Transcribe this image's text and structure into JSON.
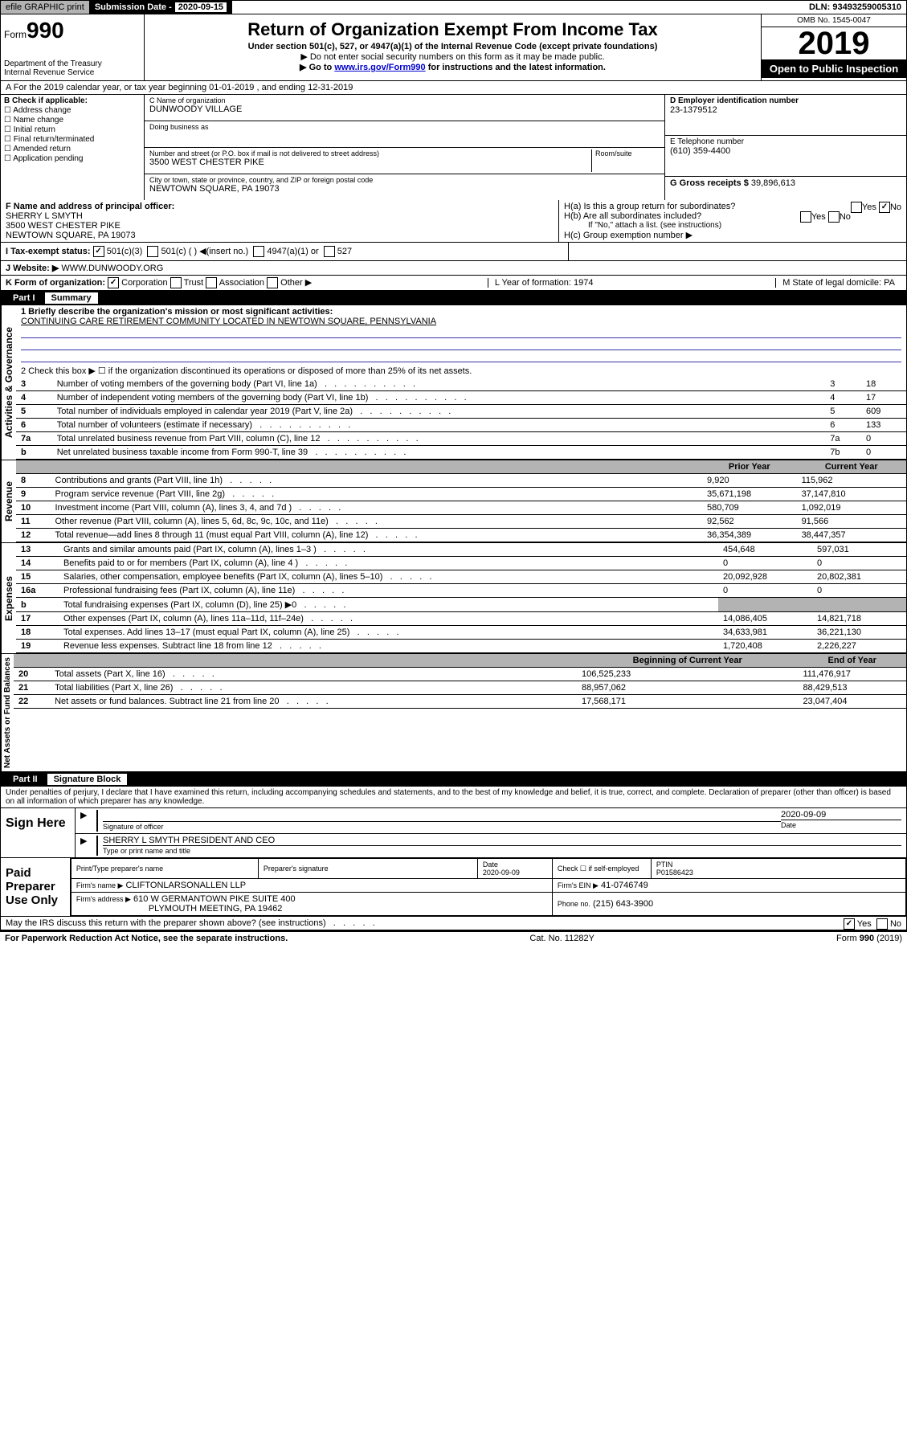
{
  "top": {
    "efile": "efile GRAPHIC print",
    "sub_lbl": "Submission Date - ",
    "sub_date": "2020-09-15",
    "dln": "DLN: 93493259005310"
  },
  "hdr": {
    "form": "Form",
    "num": "990",
    "dept": "Department of the Treasury",
    "irs": "Internal Revenue Service",
    "title": "Return of Organization Exempt From Income Tax",
    "sub": "Under section 501(c), 527, or 4947(a)(1) of the Internal Revenue Code (except private foundations)",
    "note1": "▶ Do not enter social security numbers on this form as it may be made public.",
    "note2_a": "▶ Go to ",
    "note2_link": "www.irs.gov/Form990",
    "note2_b": " for instructions and the latest information.",
    "omb": "OMB No. 1545-0047",
    "year": "2019",
    "open": "Open to Public Inspection"
  },
  "a": {
    "text": "A For the 2019 calendar year, or tax year beginning 01-01-2019   , and ending 12-31-2019"
  },
  "b": {
    "lbl": "B Check if applicable:",
    "opts": [
      "Address change",
      "Name change",
      "Initial return",
      "Final return/terminated",
      "Amended return",
      "Application pending"
    ]
  },
  "c": {
    "name_lbl": "C Name of organization",
    "name": "DUNWOODY VILLAGE",
    "dba_lbl": "Doing business as",
    "dba": "",
    "addr_lbl": "Number and street (or P.O. box if mail is not delivered to street address)",
    "room_lbl": "Room/suite",
    "addr": "3500 WEST CHESTER PIKE",
    "city_lbl": "City or town, state or province, country, and ZIP or foreign postal code",
    "city": "NEWTOWN SQUARE, PA  19073"
  },
  "d": {
    "lbl": "D Employer identification number",
    "val": "23-1379512"
  },
  "e": {
    "lbl": "E Telephone number",
    "val": "(610) 359-4400"
  },
  "g": {
    "lbl": "G Gross receipts $",
    "val": "39,896,613"
  },
  "f": {
    "lbl": "F  Name and address of principal officer:",
    "name": "SHERRY L SMYTH",
    "addr1": "3500 WEST CHESTER PIKE",
    "addr2": "NEWTOWN SQUARE, PA  19073"
  },
  "h": {
    "a": "H(a)  Is this a group return for subordinates?",
    "b": "H(b)  Are all subordinates included?",
    "b_note": "If \"No,\" attach a list. (see instructions)",
    "c": "H(c)  Group exemption number ▶"
  },
  "i": {
    "lbl": "I  Tax-exempt status:",
    "o1": "501(c)(3)",
    "o2": "501(c) (  ) ◀(insert no.)",
    "o3": "4947(a)(1) or",
    "o4": "527"
  },
  "j": {
    "lbl": "J  Website: ▶",
    "val": "WWW.DUNWOODY.ORG"
  },
  "k": {
    "lbl": "K Form of organization:",
    "o1": "Corporation",
    "o2": "Trust",
    "o3": "Association",
    "o4": "Other ▶",
    "l": "L Year of formation: 1974",
    "m": "M State of legal domicile: PA"
  },
  "p1": {
    "num": "Part I",
    "title": "Summary"
  },
  "gov": {
    "title": "Activities & Governance",
    "l1": "1  Briefly describe the organization's mission or most significant activities:",
    "l1v": "CONTINUING CARE RETIREMENT COMMUNITY LOCATED IN NEWTOWN SQUARE, PENNSYLVANIA",
    "l2": "2  Check this box ▶ ☐  if the organization discontinued its operations or disposed of more than 25% of its net assets.",
    "rows": [
      {
        "n": "3",
        "t": "Number of voting members of the governing body (Part VI, line 1a)",
        "c": "3",
        "v": "18"
      },
      {
        "n": "4",
        "t": "Number of independent voting members of the governing body (Part VI, line 1b)",
        "c": "4",
        "v": "17"
      },
      {
        "n": "5",
        "t": "Total number of individuals employed in calendar year 2019 (Part V, line 2a)",
        "c": "5",
        "v": "609"
      },
      {
        "n": "6",
        "t": "Total number of volunteers (estimate if necessary)",
        "c": "6",
        "v": "133"
      },
      {
        "n": "7a",
        "t": "Total unrelated business revenue from Part VIII, column (C), line 12",
        "c": "7a",
        "v": "0"
      },
      {
        "n": "b",
        "t": "Net unrelated business taxable income from Form 990-T, line 39",
        "c": "7b",
        "v": "0",
        "indent": true
      }
    ]
  },
  "rev": {
    "title": "Revenue",
    "hdr": {
      "py": "Prior Year",
      "cy": "Current Year"
    },
    "rows": [
      {
        "n": "8",
        "t": "Contributions and grants (Part VIII, line 1h)",
        "py": "9,920",
        "cy": "115,962"
      },
      {
        "n": "9",
        "t": "Program service revenue (Part VIII, line 2g)",
        "py": "35,671,198",
        "cy": "37,147,810"
      },
      {
        "n": "10",
        "t": "Investment income (Part VIII, column (A), lines 3, 4, and 7d )",
        "py": "580,709",
        "cy": "1,092,019"
      },
      {
        "n": "11",
        "t": "Other revenue (Part VIII, column (A), lines 5, 6d, 8c, 9c, 10c, and 11e)",
        "py": "92,562",
        "cy": "91,566"
      },
      {
        "n": "12",
        "t": "Total revenue—add lines 8 through 11 (must equal Part VIII, column (A), line 12)",
        "py": "36,354,389",
        "cy": "38,447,357"
      }
    ]
  },
  "exp": {
    "title": "Expenses",
    "rows": [
      {
        "n": "13",
        "t": "Grants and similar amounts paid (Part IX, column (A), lines 1–3 )",
        "py": "454,648",
        "cy": "597,031"
      },
      {
        "n": "14",
        "t": "Benefits paid to or for members (Part IX, column (A), line 4 )",
        "py": "0",
        "cy": "0"
      },
      {
        "n": "15",
        "t": "Salaries, other compensation, employee benefits (Part IX, column (A), lines 5–10)",
        "py": "20,092,928",
        "cy": "20,802,381"
      },
      {
        "n": "16a",
        "t": "Professional fundraising fees (Part IX, column (A), line 11e)",
        "py": "0",
        "cy": "0"
      },
      {
        "n": "b",
        "t": "Total fundraising expenses (Part IX, column (D), line 25) ▶0",
        "py": "",
        "cy": "",
        "grey": true,
        "indent": true
      },
      {
        "n": "17",
        "t": "Other expenses (Part IX, column (A), lines 11a–11d, 11f–24e)",
        "py": "14,086,405",
        "cy": "14,821,718"
      },
      {
        "n": "18",
        "t": "Total expenses. Add lines 13–17 (must equal Part IX, column (A), line 25)",
        "py": "34,633,981",
        "cy": "36,221,130"
      },
      {
        "n": "19",
        "t": "Revenue less expenses. Subtract line 18 from line 12",
        "py": "1,720,408",
        "cy": "2,226,227"
      }
    ]
  },
  "na": {
    "title": "Net Assets or Fund Balances",
    "hdr": {
      "py": "Beginning of Current Year",
      "cy": "End of Year"
    },
    "rows": [
      {
        "n": "20",
        "t": "Total assets (Part X, line 16)",
        "py": "106,525,233",
        "cy": "111,476,917"
      },
      {
        "n": "21",
        "t": "Total liabilities (Part X, line 26)",
        "py": "88,957,062",
        "cy": "88,429,513"
      },
      {
        "n": "22",
        "t": "Net assets or fund balances. Subtract line 21 from line 20",
        "py": "17,568,171",
        "cy": "23,047,404"
      }
    ]
  },
  "p2": {
    "num": "Part II",
    "title": "Signature Block"
  },
  "sig": {
    "decl": "Under penalties of perjury, I declare that I have examined this return, including accompanying schedules and statements, and to the best of my knowledge and belief, it is true, correct, and complete. Declaration of preparer (other than officer) is based on all information of which preparer has any knowledge.",
    "here": "Sign Here",
    "sig_lbl": "Signature of officer",
    "date": "2020-09-09",
    "date_lbl": "Date",
    "name": "SHERRY L SMYTH  PRESIDENT AND CEO",
    "name_lbl": "Type or print name and title"
  },
  "paid": {
    "lbl": "Paid Preparer Use Only",
    "h1": "Print/Type preparer's name",
    "h2": "Preparer's signature",
    "h3": "Date",
    "d3": "2020-09-09",
    "h4": "Check ☐ if self-employed",
    "h5": "PTIN",
    "ptin": "P01586423",
    "fn_lbl": "Firm's name    ▶",
    "fn": "CLIFTONLARSONALLEN LLP",
    "ein_lbl": "Firm's EIN ▶",
    "ein": "41-0746749",
    "fa_lbl": "Firm's address ▶",
    "fa1": "610 W GERMANTOWN PIKE SUITE 400",
    "fa2": "PLYMOUTH MEETING, PA  19462",
    "ph_lbl": "Phone no.",
    "ph": "(215) 643-3900"
  },
  "disc": {
    "q": "May the IRS discuss this return with the preparer shown above? (see instructions)",
    "y": "Yes",
    "n": "No"
  },
  "foot": {
    "l": "For Paperwork Reduction Act Notice, see the separate instructions.",
    "m": "Cat. No. 11282Y",
    "r": "Form 990 (2019)"
  }
}
